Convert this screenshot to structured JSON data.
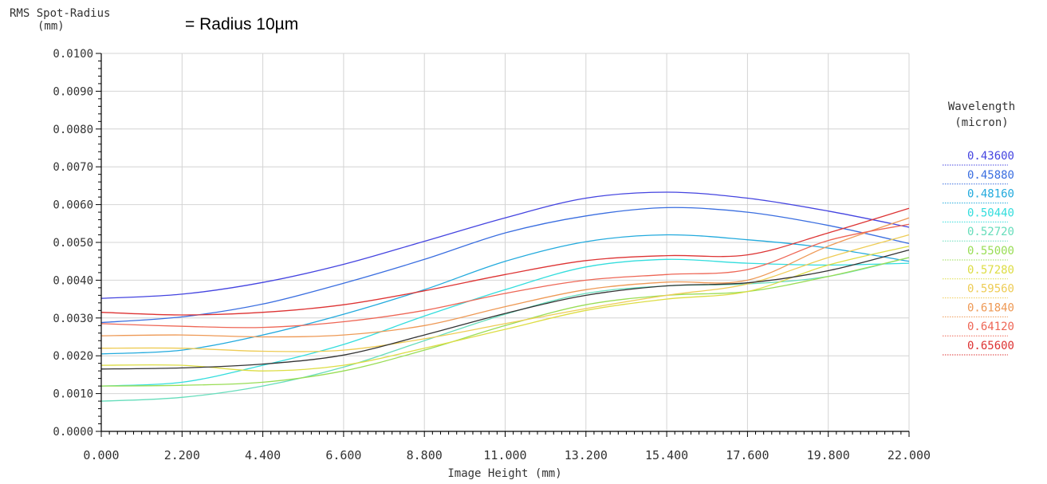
{
  "chart_data": {
    "type": "line",
    "title": "RMS Spot-Radius",
    "ylabel_unit": "(mm)",
    "annotation": "= Radius 10µm",
    "xlabel": "Image Height (mm)",
    "xlim": [
      0,
      22
    ],
    "ylim": [
      0,
      0.01
    ],
    "grid": true,
    "x_ticks": [
      0,
      2.2,
      4.4,
      6.6,
      8.8,
      11,
      13.2,
      15.4,
      17.6,
      19.8,
      22
    ],
    "x_tick_labels": [
      "0.000",
      "2.200",
      "4.400",
      "6.600",
      "8.800",
      "11.000",
      "13.200",
      "15.400",
      "17.600",
      "19.800",
      "22.000"
    ],
    "y_ticks": [
      0,
      0.001,
      0.002,
      0.003,
      0.004,
      0.005,
      0.006,
      0.007,
      0.008,
      0.009,
      0.01
    ],
    "y_tick_labels": [
      "0.0000",
      "0.0010",
      "0.0020",
      "0.0030",
      "0.0040",
      "0.0050",
      "0.0060",
      "0.0070",
      "0.0080",
      "0.0090",
      "0.0100"
    ],
    "legend_title": "Wavelength",
    "legend_unit": "(micron)",
    "legend_position": "right",
    "x": [
      0,
      2.2,
      4.4,
      6.6,
      8.8,
      11,
      13.2,
      15.4,
      17.6,
      19.8,
      22
    ],
    "series": [
      {
        "name": "0.43600",
        "color": "#4444e0",
        "values": [
          0.00352,
          0.00363,
          0.00394,
          0.00442,
          0.00503,
          0.00565,
          0.00617,
          0.00633,
          0.00617,
          0.00583,
          0.0054
        ]
      },
      {
        "name": "0.45880",
        "color": "#3a6ee0",
        "values": [
          0.00288,
          0.00303,
          0.00337,
          0.00392,
          0.00455,
          0.00525,
          0.0057,
          0.00592,
          0.0058,
          0.00545,
          0.00497
        ]
      },
      {
        "name": "0.48160",
        "color": "#22aadd",
        "values": [
          0.00205,
          0.00215,
          0.00255,
          0.0031,
          0.00375,
          0.0045,
          0.00502,
          0.0052,
          0.00507,
          0.00485,
          0.0045
        ]
      },
      {
        "name": "0.50440",
        "color": "#33dddd",
        "values": [
          0.0012,
          0.0013,
          0.00175,
          0.0023,
          0.00305,
          0.00375,
          0.00435,
          0.00455,
          0.00445,
          0.0044,
          0.00445
        ]
      },
      {
        "name": "0.52720",
        "color": "#66ddbb",
        "values": [
          0.0008,
          0.0009,
          0.0012,
          0.0017,
          0.0024,
          0.0031,
          0.00365,
          0.00385,
          0.0039,
          0.0041,
          0.0046
        ]
      },
      {
        "name": "0.55000",
        "color": "#99dd55",
        "values": [
          0.0012,
          0.00122,
          0.0013,
          0.0016,
          0.00215,
          0.0028,
          0.00335,
          0.0036,
          0.0037,
          0.0041,
          0.0046
        ]
      },
      {
        "name": "0.57280",
        "color": "#dddd44",
        "values": [
          0.00175,
          0.00175,
          0.0016,
          0.00175,
          0.0022,
          0.0027,
          0.0032,
          0.0035,
          0.0037,
          0.0044,
          0.0049
        ]
      },
      {
        "name": "0.59560",
        "color": "#eecc55",
        "values": [
          0.0022,
          0.0022,
          0.00212,
          0.00215,
          0.00245,
          0.00285,
          0.00325,
          0.0036,
          0.0039,
          0.0046,
          0.0052
        ]
      },
      {
        "name": "0.61840",
        "color": "#ee9955",
        "values": [
          0.00253,
          0.00255,
          0.0025,
          0.00255,
          0.0028,
          0.0033,
          0.00375,
          0.00395,
          0.004,
          0.0049,
          0.00565
        ]
      },
      {
        "name": "0.64120",
        "color": "#ee6655",
        "values": [
          0.00285,
          0.00278,
          0.00275,
          0.0029,
          0.0032,
          0.00365,
          0.004,
          0.00415,
          0.00428,
          0.00505,
          0.00548
        ]
      },
      {
        "name": "0.65600",
        "color": "#dd3333",
        "values": [
          0.00315,
          0.00308,
          0.00315,
          0.00335,
          0.00372,
          0.00415,
          0.00452,
          0.00465,
          0.00467,
          0.00525,
          0.0059
        ]
      },
      {
        "name": "",
        "color": "#333333",
        "values": [
          0.00165,
          0.00168,
          0.00178,
          0.00202,
          0.00255,
          0.00312,
          0.0036,
          0.00385,
          0.00393,
          0.00425,
          0.0048
        ]
      }
    ]
  }
}
